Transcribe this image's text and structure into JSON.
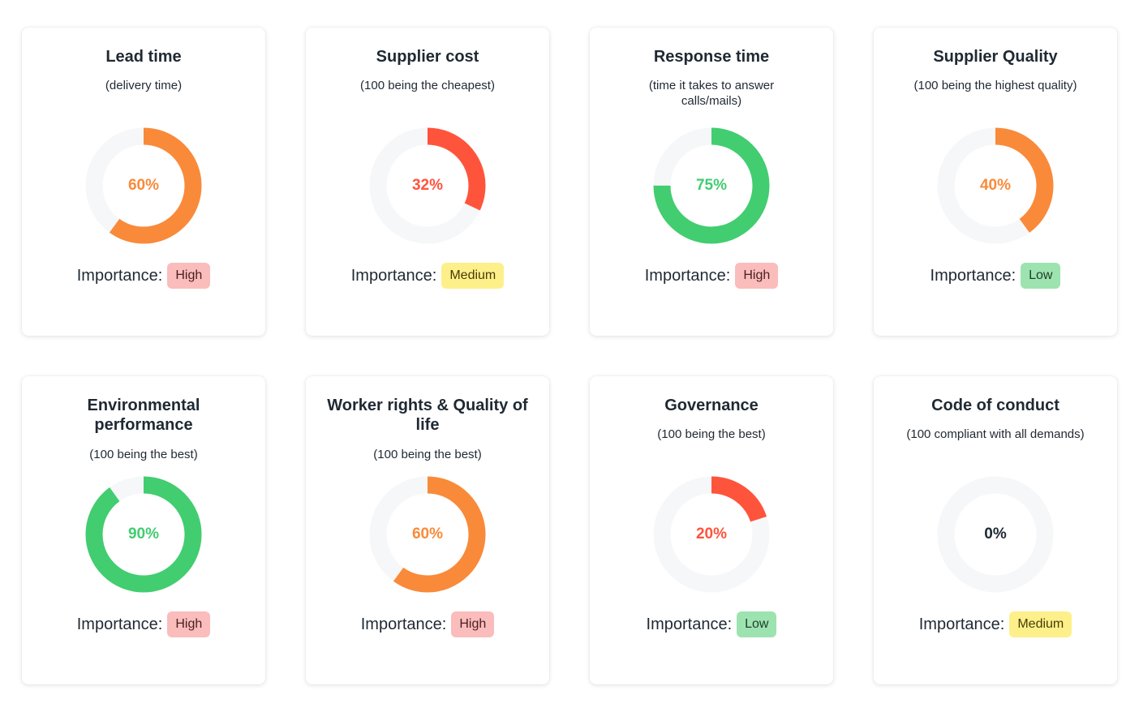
{
  "importance_label": "Importance:",
  "track_color": "#f6f7f9",
  "badge_styles": {
    "High": {
      "background": "#fbbcbc",
      "color": "#4a2121"
    },
    "Medium": {
      "background": "#fdf08a",
      "color": "#4a3b05"
    },
    "Low": {
      "background": "#9de3b0",
      "color": "#1e3d28"
    }
  },
  "cards": [
    {
      "title": "Lead time",
      "subtitle": "(delivery time)",
      "value": 60,
      "value_label": "60%",
      "color": "#f98a3a",
      "importance": "High"
    },
    {
      "title": "Supplier cost",
      "subtitle": "(100 being the cheapest)",
      "value": 32,
      "value_label": "32%",
      "color": "#ff543c",
      "importance": "Medium"
    },
    {
      "title": "Response time",
      "subtitle": "(time it takes to answer calls/mails)",
      "value": 75,
      "value_label": "75%",
      "color": "#42cd70",
      "importance": "High"
    },
    {
      "title": "Supplier Quality",
      "subtitle": "(100 being the highest quality)",
      "value": 40,
      "value_label": "40%",
      "color": "#f98a3a",
      "importance": "Low"
    },
    {
      "title": "Environmental performance",
      "subtitle": "(100 being the best)",
      "value": 90,
      "value_label": "90%",
      "color": "#42cd70",
      "importance": "High"
    },
    {
      "title": "Worker rights & Quality of life",
      "subtitle": "(100 being the best)",
      "value": 60,
      "value_label": "60%",
      "color": "#f98a3a",
      "importance": "High"
    },
    {
      "title": "Governance",
      "subtitle": "(100 being the best)",
      "value": 20,
      "value_label": "20%",
      "color": "#ff543c",
      "importance": "Low"
    },
    {
      "title": "Code of conduct",
      "subtitle": "(100 compliant with all demands)",
      "value": 0,
      "value_label": "0%",
      "color": "#1f2933",
      "importance": "Medium"
    }
  ]
}
